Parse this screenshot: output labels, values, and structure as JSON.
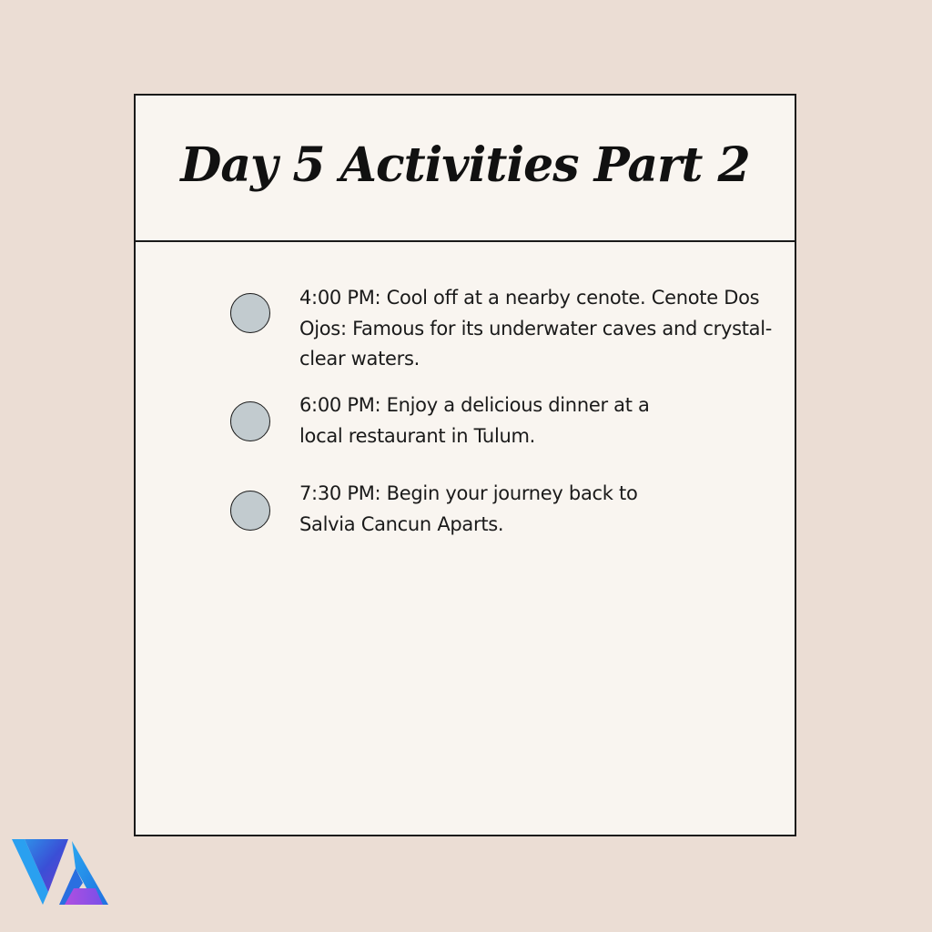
{
  "card": {
    "title": "Day 5 Activities Part 2"
  },
  "items": [
    {
      "text": "4:00 PM: Cool off at a nearby cenote. Cenote Dos Ojos: Famous for its underwater caves and crystal-clear waters."
    },
    {
      "text": "6:00 PM: Enjoy a delicious dinner at a local restaurant in Tulum."
    },
    {
      "text": "7:30 PM: Begin your journey back to Salvia Cancun Aparts."
    }
  ],
  "colors": {
    "background": "#ebddd4",
    "card": "#f9f5f0",
    "bullet": "#c2cbcf",
    "border": "#1a1a1a"
  },
  "logo": {
    "icon": "va-logo-icon"
  }
}
